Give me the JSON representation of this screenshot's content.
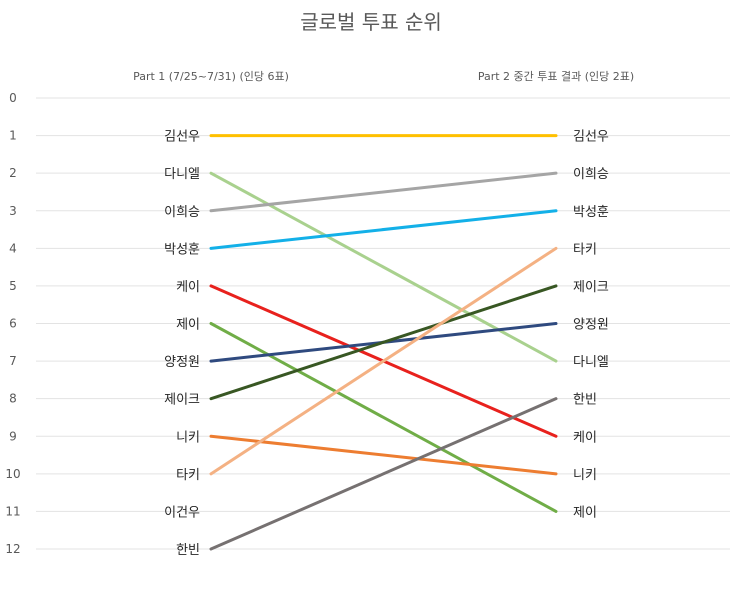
{
  "chart_data": {
    "type": "line",
    "title": "글로벌 투표 순위",
    "x": [
      "Part 1 (7/25~7/31) (인당 6표)",
      "Part 2 중간 투표 결과 (인당 2표)"
    ],
    "ylim": [
      0,
      12
    ],
    "yticks": [
      0,
      1,
      2,
      3,
      4,
      5,
      6,
      7,
      8,
      9,
      10,
      11,
      12
    ],
    "y_reversed": true,
    "grid": true,
    "legend": "none",
    "series": [
      {
        "name": "김선우",
        "values": [
          1,
          1
        ],
        "color": "#ffc000"
      },
      {
        "name": "다니엘",
        "values": [
          2,
          7
        ],
        "color": "#a9d18e"
      },
      {
        "name": "이희승",
        "values": [
          3,
          2
        ],
        "color": "#a5a5a5"
      },
      {
        "name": "박성훈",
        "values": [
          4,
          3
        ],
        "color": "#13b0e8"
      },
      {
        "name": "케이",
        "values": [
          5,
          9
        ],
        "color": "#e8211d"
      },
      {
        "name": "제이",
        "values": [
          6,
          11
        ],
        "color": "#70ad47"
      },
      {
        "name": "양정원",
        "values": [
          7,
          6
        ],
        "color": "#2f4a7f"
      },
      {
        "name": "제이크",
        "values": [
          8,
          5
        ],
        "color": "#385723"
      },
      {
        "name": "니키",
        "values": [
          9,
          10
        ],
        "color": "#ed7d31"
      },
      {
        "name": "타키",
        "values": [
          10,
          4
        ],
        "color": "#f4b183"
      },
      {
        "name": "이건우",
        "values": [
          11,
          null
        ],
        "color": "#7f7f7f"
      },
      {
        "name": "한빈",
        "values": [
          12,
          8
        ],
        "color": "#767171"
      }
    ]
  }
}
